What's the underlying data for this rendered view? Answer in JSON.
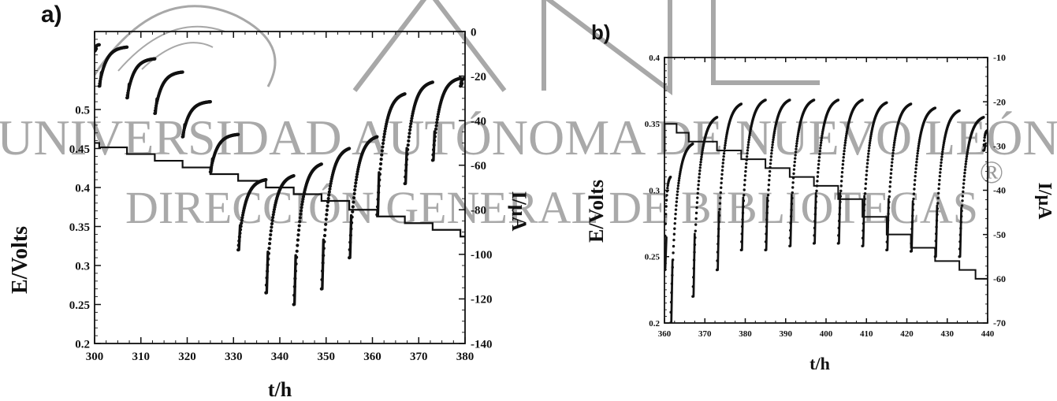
{
  "watermark": {
    "logo_text": "UANL",
    "line1": "UNIVERSIDAD AUTÓNOMA DE NUEVO LEÓN",
    "line2": "DIRECCIÓN GENERAL DE BIBLIOTECAS",
    "registered_mark": "®",
    "color": "#9a9a9a"
  },
  "chart_data": [
    {
      "panel_label": "a)",
      "type": "line",
      "xlabel": "t/h",
      "ylabel_left": "E/Volts",
      "ylabel_right": "I/μA",
      "xlim": [
        300,
        380
      ],
      "ylim_left": [
        0.2,
        0.6
      ],
      "ylim_right": [
        -140,
        0
      ],
      "x_ticks": [
        "300",
        "310",
        "320",
        "330",
        "340",
        "350",
        "360",
        "370",
        "380"
      ],
      "y_left_ticks": [
        "0.2",
        "0.25",
        "0.3",
        "0.35",
        "0.4",
        "0.45",
        "0.5"
      ],
      "y_right_ticks": [
        "0",
        "-20",
        "-40",
        "-60",
        "-80",
        "-100",
        "-120",
        "-140"
      ],
      "grid": false,
      "series": [
        {
          "axis": "left",
          "style": "dots",
          "segments": [
            {
              "x0": 300,
              "x1": 301,
              "y0": 0.575,
              "y1": 0.583
            },
            {
              "x0": 301,
              "x1": 307,
              "y0": 0.53,
              "y1": 0.58
            },
            {
              "x0": 307,
              "x1": 313,
              "y0": 0.515,
              "y1": 0.565
            },
            {
              "x0": 313,
              "x1": 319,
              "y0": 0.495,
              "y1": 0.548
            },
            {
              "x0": 319,
              "x1": 325,
              "y0": 0.465,
              "y1": 0.51
            },
            {
              "x0": 325,
              "x1": 331,
              "y0": 0.42,
              "y1": 0.468
            },
            {
              "x0": 331,
              "x1": 337,
              "y0": 0.32,
              "y1": 0.41
            },
            {
              "x0": 337,
              "x1": 343,
              "y0": 0.265,
              "y1": 0.415
            },
            {
              "x0": 343,
              "x1": 349,
              "y0": 0.25,
              "y1": 0.43
            },
            {
              "x0": 349,
              "x1": 355,
              "y0": 0.27,
              "y1": 0.45
            },
            {
              "x0": 355,
              "x1": 361,
              "y0": 0.31,
              "y1": 0.465
            },
            {
              "x0": 361,
              "x1": 367,
              "y0": 0.365,
              "y1": 0.52
            },
            {
              "x0": 367,
              "x1": 373,
              "y0": 0.405,
              "y1": 0.535
            },
            {
              "x0": 373,
              "x1": 379,
              "y0": 0.435,
              "y1": 0.54
            },
            {
              "x0": 379,
              "x1": 380,
              "y0": 0.53,
              "y1": 0.54
            }
          ]
        },
        {
          "axis": "right",
          "style": "steps",
          "x": [
            300,
            301,
            307,
            313,
            319,
            325,
            331,
            337,
            343,
            349,
            355,
            361,
            367,
            373,
            379,
            380
          ],
          "y": [
            -50,
            -52,
            -55,
            -58,
            -61,
            -64,
            -67,
            -70,
            -73,
            -76,
            -80,
            -83,
            -86,
            -89,
            -92,
            -92
          ]
        }
      ]
    },
    {
      "panel_label": "b)",
      "type": "line",
      "xlabel": "t/h",
      "ylabel_left": "E/Volts",
      "ylabel_right": "I/μA",
      "xlim": [
        360,
        440
      ],
      "ylim_left": [
        0.2,
        0.4
      ],
      "ylim_right": [
        -70,
        -10
      ],
      "x_ticks": [
        "360",
        "370",
        "380",
        "390",
        "400",
        "410",
        "420",
        "430",
        "440"
      ],
      "y_left_ticks": [
        "0.2",
        "0.25",
        "0.3",
        "0.35",
        "0.4"
      ],
      "y_right_ticks": [
        "-10",
        "-20",
        "-30",
        "-40",
        "-50",
        "-60",
        "-70"
      ],
      "grid": false,
      "series": [
        {
          "axis": "left",
          "style": "dots",
          "segments": [
            {
              "x0": 360,
              "x1": 361.5,
              "y0": 0.24,
              "y1": 0.31
            },
            {
              "x0": 361.5,
              "x1": 367,
              "y0": 0.2,
              "y1": 0.335
            },
            {
              "x0": 367,
              "x1": 373,
              "y0": 0.22,
              "y1": 0.355
            },
            {
              "x0": 373,
              "x1": 379,
              "y0": 0.24,
              "y1": 0.365
            },
            {
              "x0": 379,
              "x1": 385,
              "y0": 0.255,
              "y1": 0.368
            },
            {
              "x0": 385,
              "x1": 391,
              "y0": 0.255,
              "y1": 0.368
            },
            {
              "x0": 391,
              "x1": 397,
              "y0": 0.258,
              "y1": 0.368
            },
            {
              "x0": 397,
              "x1": 403,
              "y0": 0.26,
              "y1": 0.368
            },
            {
              "x0": 403,
              "x1": 409,
              "y0": 0.26,
              "y1": 0.368
            },
            {
              "x0": 409,
              "x1": 415,
              "y0": 0.258,
              "y1": 0.366
            },
            {
              "x0": 415,
              "x1": 421,
              "y0": 0.255,
              "y1": 0.365
            },
            {
              "x0": 421,
              "x1": 427,
              "y0": 0.254,
              "y1": 0.362
            },
            {
              "x0": 427,
              "x1": 433,
              "y0": 0.25,
              "y1": 0.36
            },
            {
              "x0": 433,
              "x1": 439,
              "y0": 0.25,
              "y1": 0.355
            },
            {
              "x0": 439,
              "x1": 440,
              "y0": 0.33,
              "y1": 0.345
            }
          ]
        },
        {
          "axis": "right",
          "style": "steps",
          "x": [
            360,
            363,
            366,
            373,
            379,
            385,
            391,
            397,
            403,
            409,
            415,
            421,
            427,
            433,
            437,
            440
          ],
          "y": [
            -25,
            -27,
            -29,
            -31,
            -33,
            -35,
            -37,
            -39,
            -42,
            -46,
            -50,
            -53,
            -56,
            -58,
            -60,
            -60
          ]
        }
      ]
    }
  ]
}
